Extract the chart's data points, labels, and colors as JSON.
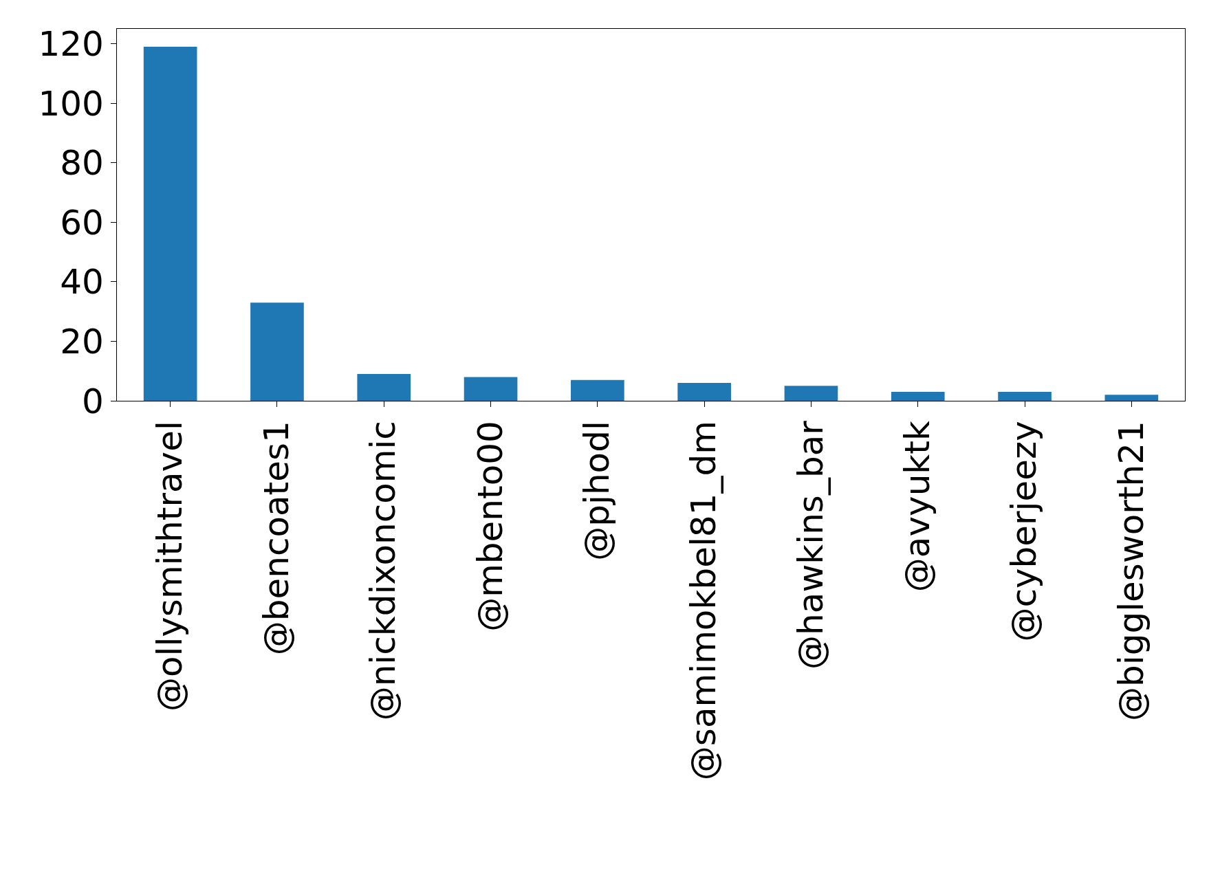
{
  "chart_data": {
    "type": "bar",
    "categories": [
      "@ollysmithtravel",
      "@bencoates1",
      "@nickdixoncomic",
      "@mbento00",
      "@pjhodl",
      "@samimokbel81_dm",
      "@hawkins_bar",
      "@avyuktk",
      "@cyberjeezy",
      "@bigglesworth21"
    ],
    "values": [
      119,
      33,
      9,
      8,
      7,
      6,
      5,
      3,
      3,
      2
    ],
    "color": "#1f77b4",
    "ylim": [
      0,
      125
    ],
    "yticks": [
      0,
      20,
      40,
      60,
      80,
      100,
      120
    ],
    "grid": false,
    "legend": false
  }
}
